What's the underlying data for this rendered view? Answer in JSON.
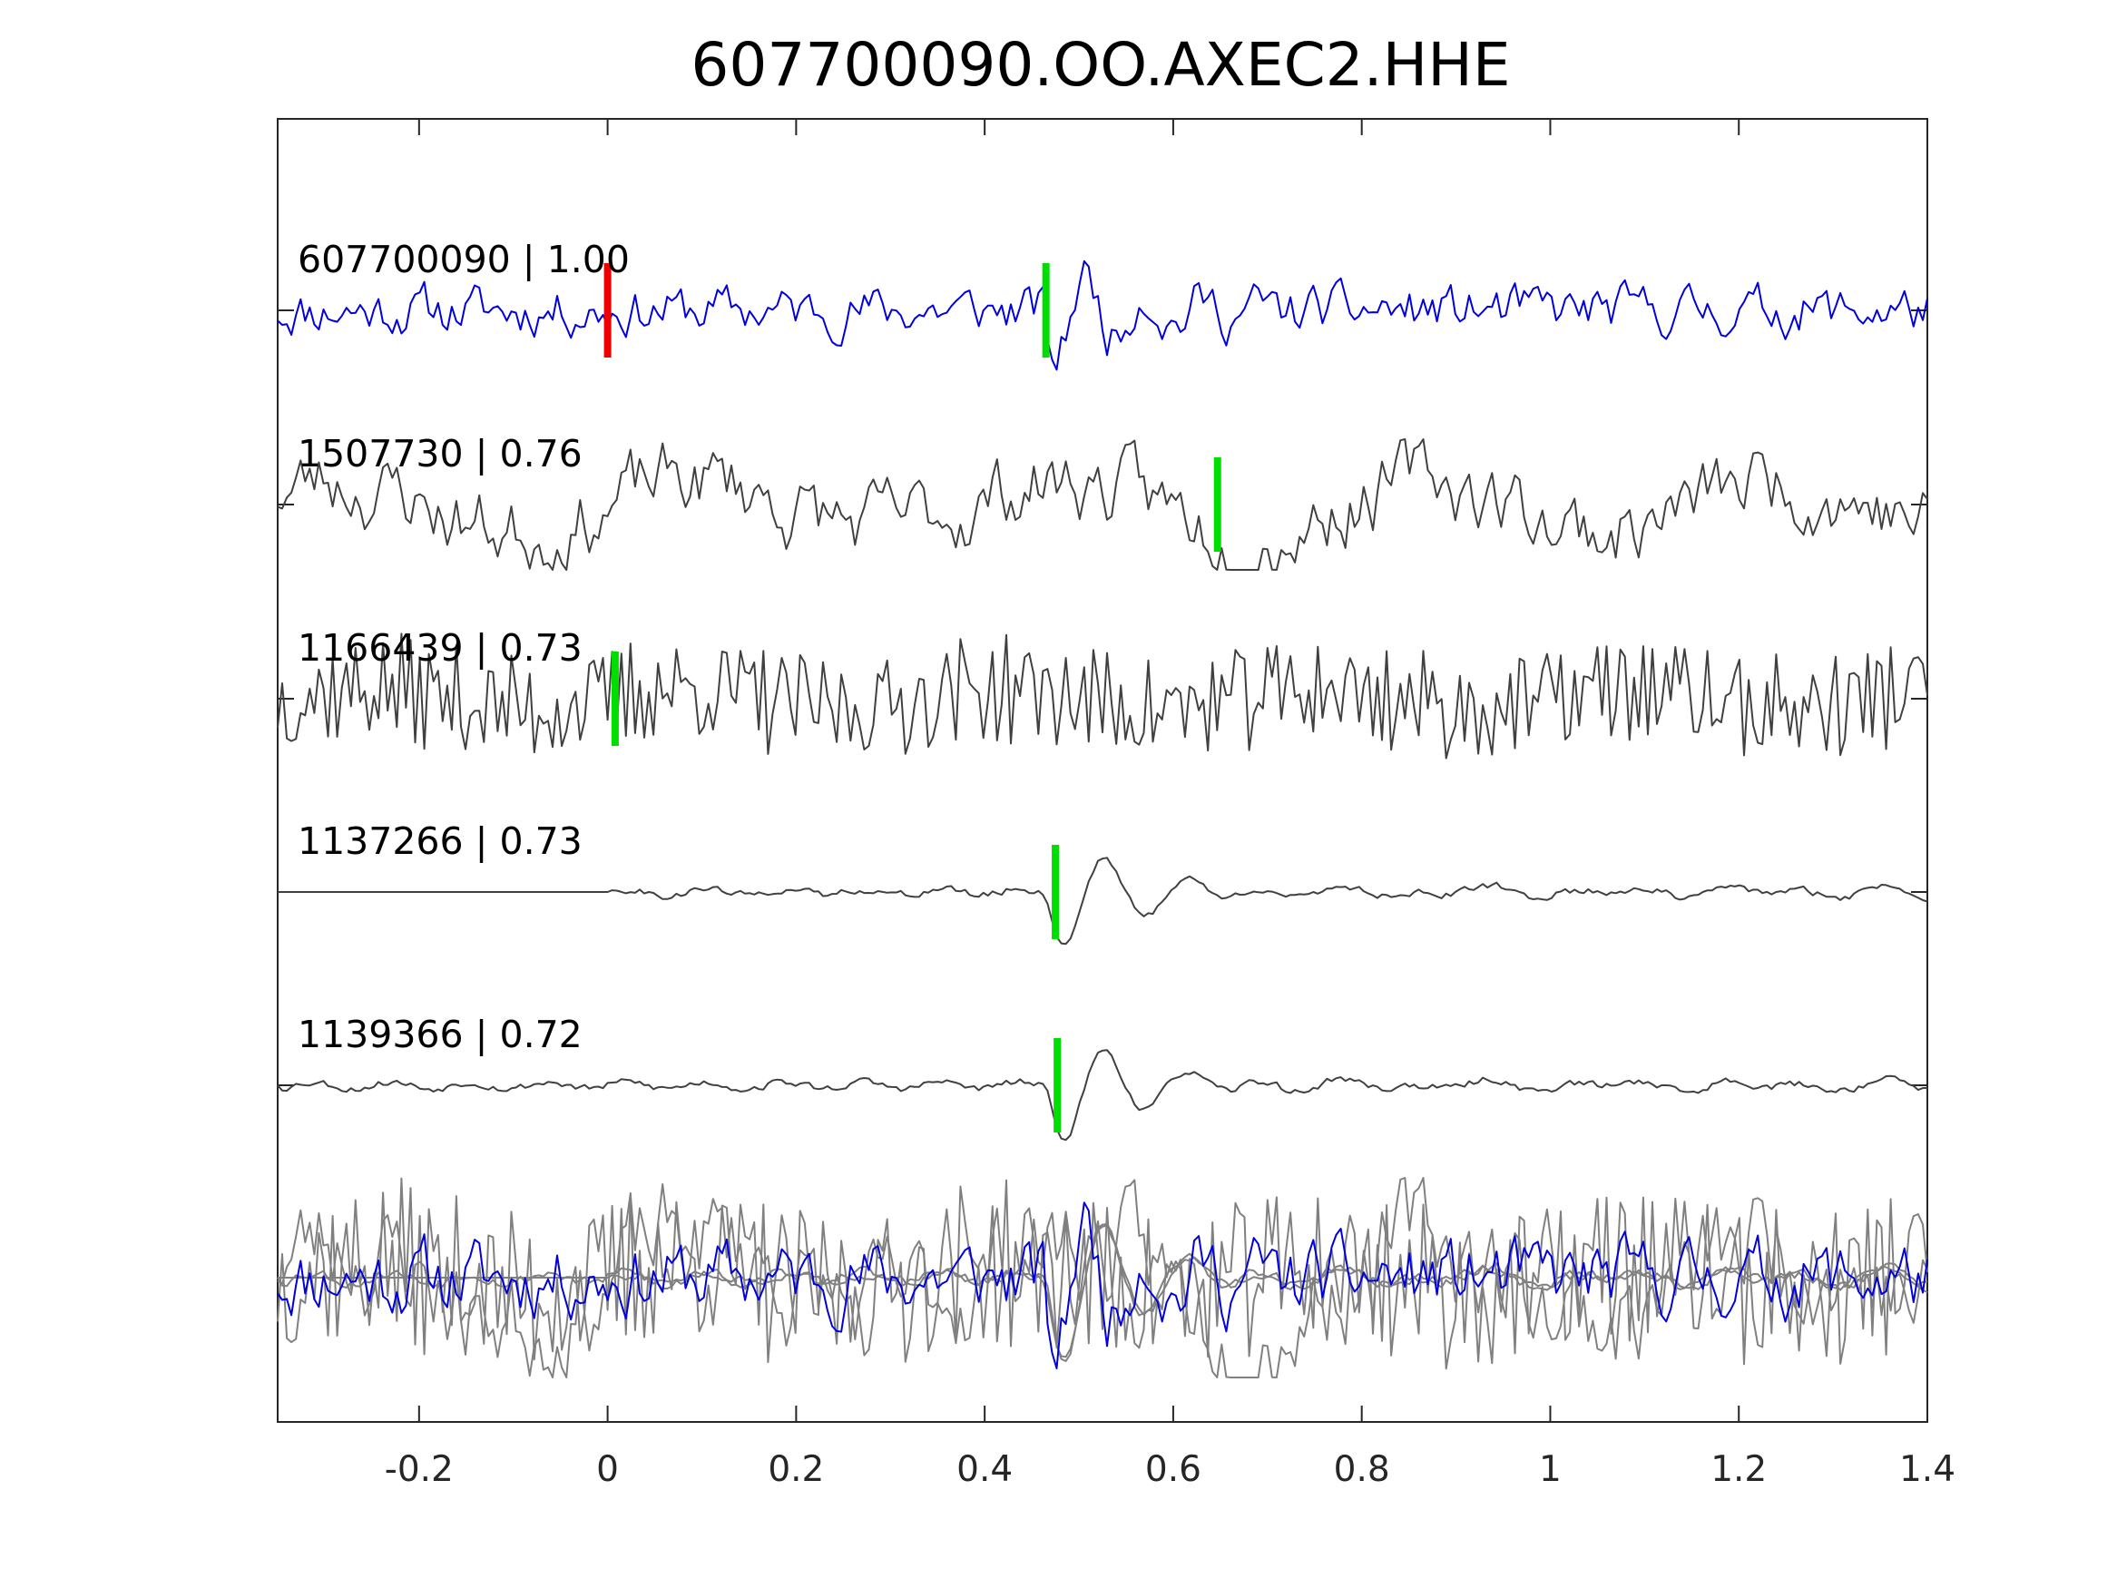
{
  "chart_data": {
    "type": "line",
    "title": "607700090.OO.AXEC2.HHE",
    "xlim": [
      -0.35,
      1.4
    ],
    "xticks": [
      -0.2,
      0,
      0.2,
      0.4,
      0.6,
      0.8,
      1,
      1.2,
      1.4
    ],
    "xtick_labels": [
      "-0.2",
      "0",
      "0.2",
      "0.4",
      "0.6",
      "0.8",
      "1",
      "1.2",
      "1.4"
    ],
    "grid": false,
    "colors": {
      "template": "#0000dd",
      "match": "#404040",
      "stack": "#808080",
      "reference_pick": "#ee0000",
      "match_pick": "#00dd00",
      "axes": "#262626"
    },
    "traces": [
      {
        "label": "607700090 | 1.00",
        "event_id": "607700090",
        "correlation": 1.0,
        "kind": "template",
        "pick_time": 0.465,
        "reference_pick_time": 0.0,
        "amplitude": 0.95,
        "seed": 11,
        "style": "noisy",
        "onset": 0.0
      },
      {
        "label": "1507730 | 0.76",
        "event_id": "1507730",
        "correlation": 0.76,
        "kind": "match",
        "pick_time": 0.647,
        "amplitude": 1.05,
        "seed": 23,
        "style": "lowfreq",
        "onset": 0.0
      },
      {
        "label": "1166439 | 0.73",
        "event_id": "1166439",
        "correlation": 0.73,
        "kind": "match",
        "pick_time": 0.008,
        "amplitude": 1.05,
        "seed": 37,
        "style": "highfreq",
        "onset": 0.0
      },
      {
        "label": "1137266 | 0.73",
        "event_id": "1137266",
        "correlation": 0.73,
        "kind": "match",
        "pick_time": 0.475,
        "amplitude": 1.0,
        "seed": 41,
        "style": "clean",
        "onset": 0.0
      },
      {
        "label": "1139366 | 0.72",
        "event_id": "1139366",
        "correlation": 0.72,
        "kind": "match",
        "pick_time": 0.477,
        "amplitude": 1.0,
        "seed": 53,
        "style": "clean",
        "onset": -0.35
      }
    ]
  }
}
